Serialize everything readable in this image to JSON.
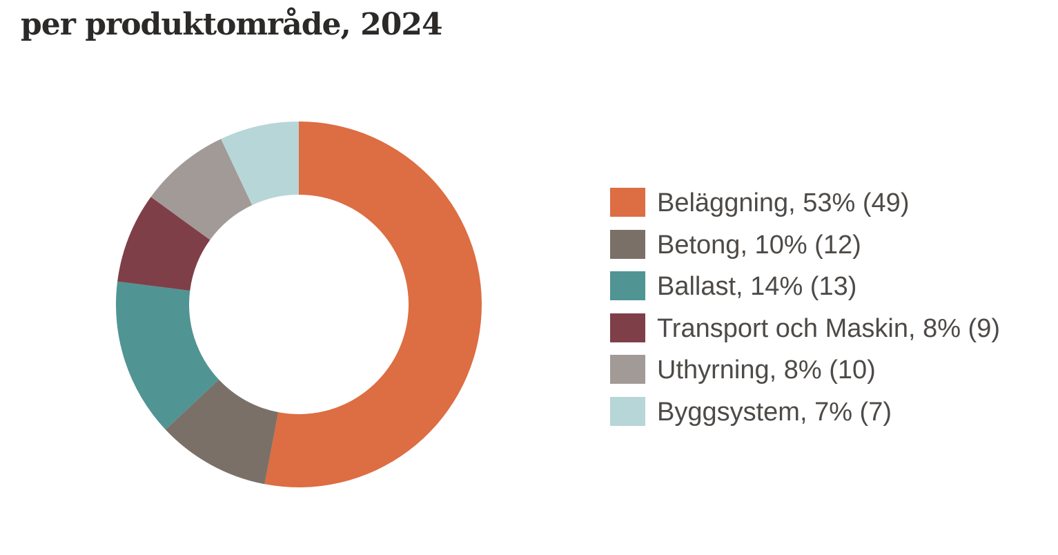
{
  "title": "per produktområde, 2024",
  "chart_data": {
    "type": "pie",
    "title": "per produktområde, 2024",
    "donut": true,
    "legend_position": "right",
    "slices": [
      {
        "label": "Beläggning, 53% (49)",
        "name": "Beläggning",
        "value": 53,
        "previous": 49,
        "color": "#dd6d42"
      },
      {
        "label": "Betong, 10% (12)",
        "name": "Betong",
        "value": 10,
        "previous": 12,
        "color": "#7a7067"
      },
      {
        "label": "Ballast, 14% (13)",
        "name": "Ballast",
        "value": 14,
        "previous": 13,
        "color": "#519494"
      },
      {
        "label": "Transport och Maskin, 8% (9)",
        "name": "Transport och Maskin",
        "value": 8,
        "previous": 9,
        "color": "#7f3f48"
      },
      {
        "label": "Uthyrning, 8% (10)",
        "name": "Uthyrning",
        "value": 8,
        "previous": 10,
        "color": "#a29a96"
      },
      {
        "label": "Byggsystem, 7% (7)",
        "name": "Byggsystem",
        "value": 7,
        "previous": 7,
        "color": "#b7d6d8"
      }
    ]
  }
}
